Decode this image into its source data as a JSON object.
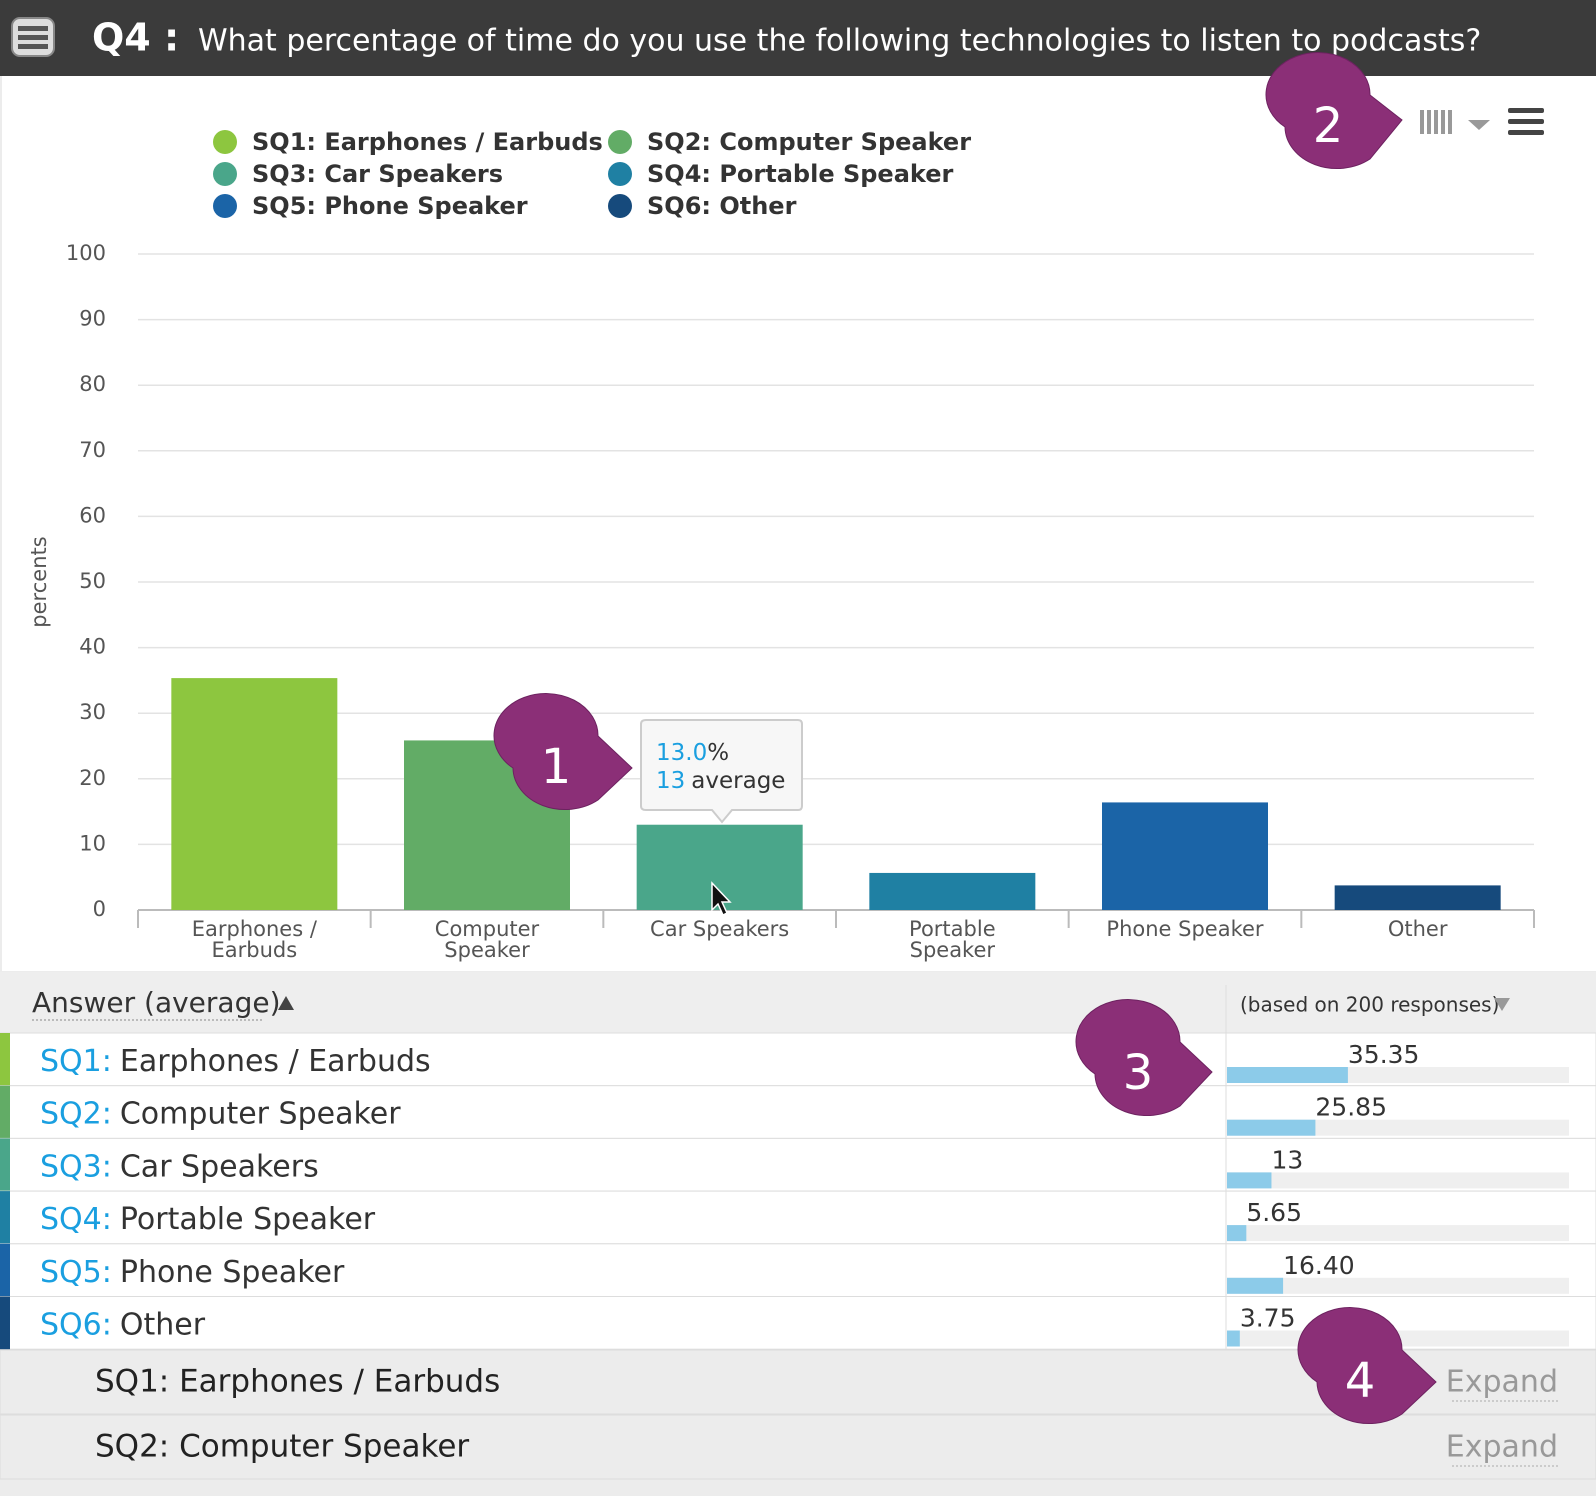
{
  "header": {
    "label": "Q4 :",
    "question": "What percentage of time do you use the following technologies to listen to podcasts?"
  },
  "chart_data": {
    "type": "bar",
    "legend": [
      "SQ1: Earphones / Earbuds",
      "SQ2: Computer Speaker",
      "SQ3: Car Speakers",
      "SQ4: Portable Speaker",
      "SQ5: Phone Speaker",
      "SQ6: Other"
    ],
    "categories": [
      "Earphones / Earbuds",
      "Computer Speaker",
      "Car Speakers",
      "Portable Speaker",
      "Phone Speaker",
      "Other"
    ],
    "values": [
      35.35,
      25.85,
      13,
      5.65,
      16.4,
      3.75
    ],
    "colors": [
      "#8dc63f",
      "#62ac66",
      "#4aa68a",
      "#1f80a3",
      "#1b64a7",
      "#164a7c"
    ],
    "ylabel": "percents",
    "ylim": [
      0,
      100
    ],
    "yticks": [
      0,
      10,
      20,
      30,
      40,
      50,
      60,
      70,
      80,
      90,
      100
    ],
    "grid": true,
    "tooltip": {
      "percent": "13.0",
      "unit": "%",
      "average": 13,
      "average_text": "average"
    }
  },
  "callouts": [
    1,
    2,
    3,
    4
  ],
  "table": {
    "header": "Answer (average)",
    "basis": "(based on 200 responses)",
    "rows": [
      {
        "code": "SQ1:",
        "label": "Earphones / Earbuds",
        "value": 35.35
      },
      {
        "code": "SQ2:",
        "label": "Computer Speaker",
        "value": 25.85
      },
      {
        "code": "SQ3:",
        "label": "Car Speakers",
        "value": 13
      },
      {
        "code": "SQ4:",
        "label": "Portable Speaker",
        "value": 5.65
      },
      {
        "code": "SQ5:",
        "label": "Phone Speaker",
        "value": 16.4,
        "value_label": "16.40"
      },
      {
        "code": "SQ6:",
        "label": "Other",
        "value": 3.75
      }
    ]
  },
  "expand_rows": [
    {
      "label": "SQ1: Earphones / Earbuds",
      "action": "Expand"
    },
    {
      "label": "SQ2: Computer Speaker",
      "action": "Expand"
    }
  ]
}
